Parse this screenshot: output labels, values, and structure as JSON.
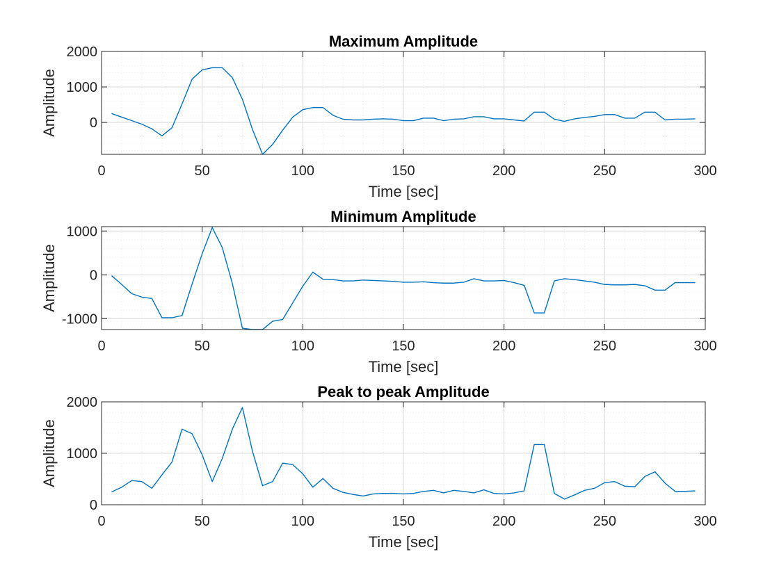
{
  "chart_data": [
    {
      "type": "line",
      "title": "Maximum Amplitude",
      "xlabel": "Time [sec]",
      "ylabel": "Amplitude",
      "xlim": [
        0,
        300
      ],
      "ylim": [
        -900,
        2000
      ],
      "xticks": [
        0,
        50,
        100,
        150,
        200,
        250,
        300
      ],
      "xtick_labels": [
        "0",
        "50",
        "100",
        "150",
        "200",
        "250",
        "300"
      ],
      "yticks": [
        0,
        1000,
        2000
      ],
      "ytick_labels": [
        "0",
        "1000",
        "2000"
      ],
      "grid": true,
      "minor_grid": true,
      "color": "#0072BD",
      "x": [
        5,
        10,
        15,
        20,
        25,
        30,
        35,
        40,
        45,
        50,
        55,
        60,
        65,
        70,
        75,
        80,
        85,
        90,
        95,
        100,
        105,
        110,
        115,
        120,
        125,
        130,
        135,
        140,
        145,
        150,
        155,
        160,
        165,
        170,
        175,
        180,
        185,
        190,
        195,
        200,
        205,
        210,
        215,
        220,
        225,
        230,
        235,
        240,
        245,
        250,
        255,
        260,
        265,
        270,
        275,
        280,
        285,
        290,
        295
      ],
      "y": [
        250,
        150,
        50,
        -50,
        -180,
        -380,
        -150,
        520,
        1220,
        1480,
        1540,
        1540,
        1260,
        650,
        -200,
        -900,
        -620,
        -220,
        150,
        360,
        420,
        420,
        200,
        90,
        70,
        70,
        90,
        100,
        90,
        50,
        50,
        120,
        120,
        50,
        90,
        100,
        160,
        160,
        100,
        100,
        70,
        40,
        290,
        290,
        90,
        30,
        100,
        140,
        170,
        220,
        220,
        120,
        120,
        290,
        290,
        70,
        90,
        90,
        100
      ]
    },
    {
      "type": "line",
      "title": "Minimum Amplitude",
      "xlabel": "Time [sec]",
      "ylabel": "Amplitude",
      "xlim": [
        0,
        300
      ],
      "ylim": [
        -1250,
        1100
      ],
      "xticks": [
        0,
        50,
        100,
        150,
        200,
        250,
        300
      ],
      "xtick_labels": [
        "0",
        "50",
        "100",
        "150",
        "200",
        "250",
        "300"
      ],
      "yticks": [
        -1000,
        0,
        1000
      ],
      "ytick_labels": [
        "-1000",
        "0",
        "1000"
      ],
      "grid": true,
      "minor_grid": true,
      "color": "#0072BD",
      "x": [
        5,
        10,
        15,
        20,
        25,
        30,
        35,
        40,
        45,
        50,
        55,
        60,
        65,
        70,
        75,
        80,
        85,
        90,
        95,
        100,
        105,
        110,
        115,
        120,
        125,
        130,
        135,
        140,
        145,
        150,
        155,
        160,
        165,
        170,
        175,
        180,
        185,
        190,
        195,
        200,
        205,
        210,
        215,
        220,
        225,
        230,
        235,
        240,
        245,
        250,
        255,
        260,
        265,
        270,
        275,
        280,
        285,
        290,
        295
      ],
      "y": [
        -20,
        -220,
        -430,
        -510,
        -540,
        -980,
        -980,
        -930,
        -210,
        480,
        1080,
        620,
        -200,
        -1220,
        -1250,
        -1250,
        -1060,
        -1020,
        -640,
        -260,
        60,
        -100,
        -110,
        -140,
        -140,
        -120,
        -130,
        -140,
        -150,
        -170,
        -170,
        -160,
        -180,
        -190,
        -190,
        -170,
        -90,
        -140,
        -140,
        -130,
        -180,
        -240,
        -870,
        -870,
        -140,
        -90,
        -110,
        -140,
        -170,
        -220,
        -230,
        -230,
        -220,
        -250,
        -350,
        -350,
        -180,
        -180,
        -180
      ]
    },
    {
      "type": "line",
      "title": "Peak to peak Amplitude",
      "xlabel": "Time [sec]",
      "ylabel": "Amplitude",
      "xlim": [
        0,
        300
      ],
      "ylim": [
        0,
        2000
      ],
      "xticks": [
        0,
        50,
        100,
        150,
        200,
        250,
        300
      ],
      "xtick_labels": [
        "0",
        "50",
        "100",
        "150",
        "200",
        "250",
        "300"
      ],
      "yticks": [
        0,
        1000,
        2000
      ],
      "ytick_labels": [
        "0",
        "1000",
        "2000"
      ],
      "grid": true,
      "minor_grid": true,
      "color": "#0072BD",
      "x": [
        5,
        10,
        15,
        20,
        25,
        30,
        35,
        40,
        45,
        50,
        55,
        60,
        65,
        70,
        75,
        80,
        85,
        90,
        95,
        100,
        105,
        110,
        115,
        120,
        125,
        130,
        135,
        140,
        145,
        150,
        155,
        160,
        165,
        170,
        175,
        180,
        185,
        190,
        195,
        200,
        205,
        210,
        215,
        220,
        225,
        230,
        235,
        240,
        245,
        250,
        255,
        260,
        265,
        270,
        275,
        280,
        285,
        290,
        295
      ],
      "y": [
        250,
        340,
        470,
        450,
        320,
        580,
        830,
        1470,
        1380,
        970,
        450,
        900,
        1470,
        1890,
        1040,
        370,
        450,
        810,
        780,
        600,
        340,
        510,
        320,
        240,
        200,
        170,
        210,
        220,
        220,
        210,
        220,
        260,
        280,
        230,
        280,
        260,
        230,
        290,
        220,
        210,
        230,
        270,
        1170,
        1170,
        220,
        110,
        190,
        280,
        320,
        430,
        450,
        360,
        350,
        550,
        640,
        420,
        260,
        260,
        270
      ]
    }
  ]
}
